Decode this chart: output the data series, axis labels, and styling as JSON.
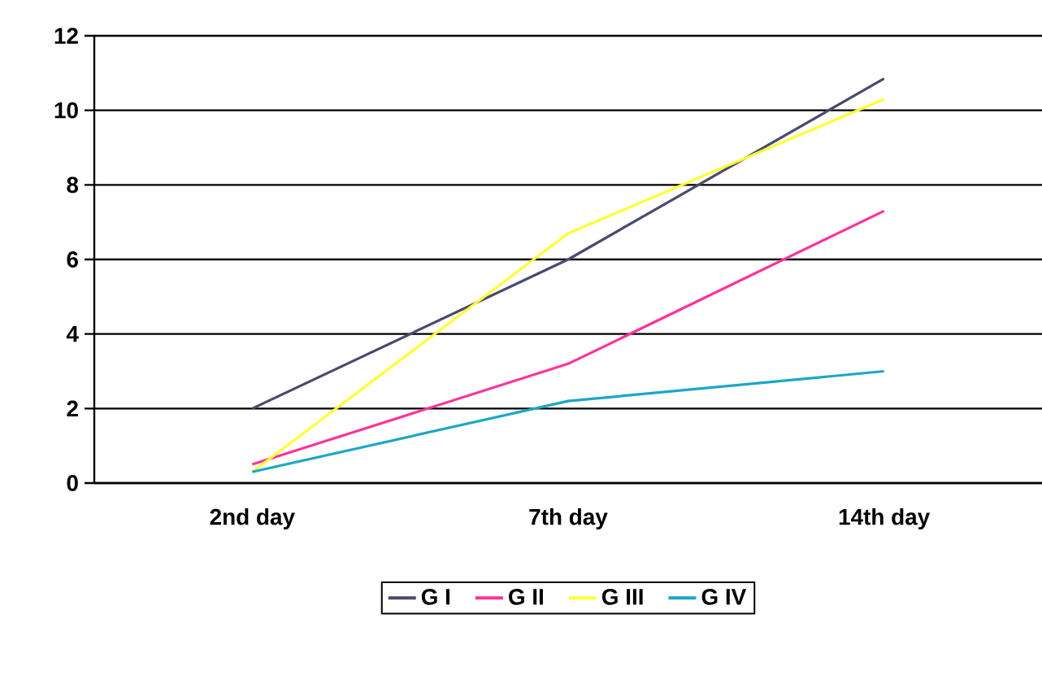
{
  "chart_data": {
    "type": "line",
    "categories": [
      "2nd day",
      "7th day",
      "14th day"
    ],
    "series": [
      {
        "name": "G I",
        "color": "#4a4a6e",
        "values": [
          2.0,
          6.0,
          10.85
        ]
      },
      {
        "name": "G II",
        "color": "#ff3399",
        "values": [
          0.5,
          3.2,
          7.3
        ]
      },
      {
        "name": "G III",
        "color": "#ffff33",
        "values": [
          0.3,
          6.7,
          10.3
        ]
      },
      {
        "name": "G IV",
        "color": "#1aa6c8",
        "values": [
          0.3,
          2.2,
          3.0
        ]
      }
    ],
    "ylim": [
      0,
      12
    ],
    "yticks": [
      0,
      2,
      4,
      6,
      8,
      10,
      12
    ],
    "grid": "y",
    "legend": "bottom",
    "marker": "none",
    "line_style": "solid"
  }
}
